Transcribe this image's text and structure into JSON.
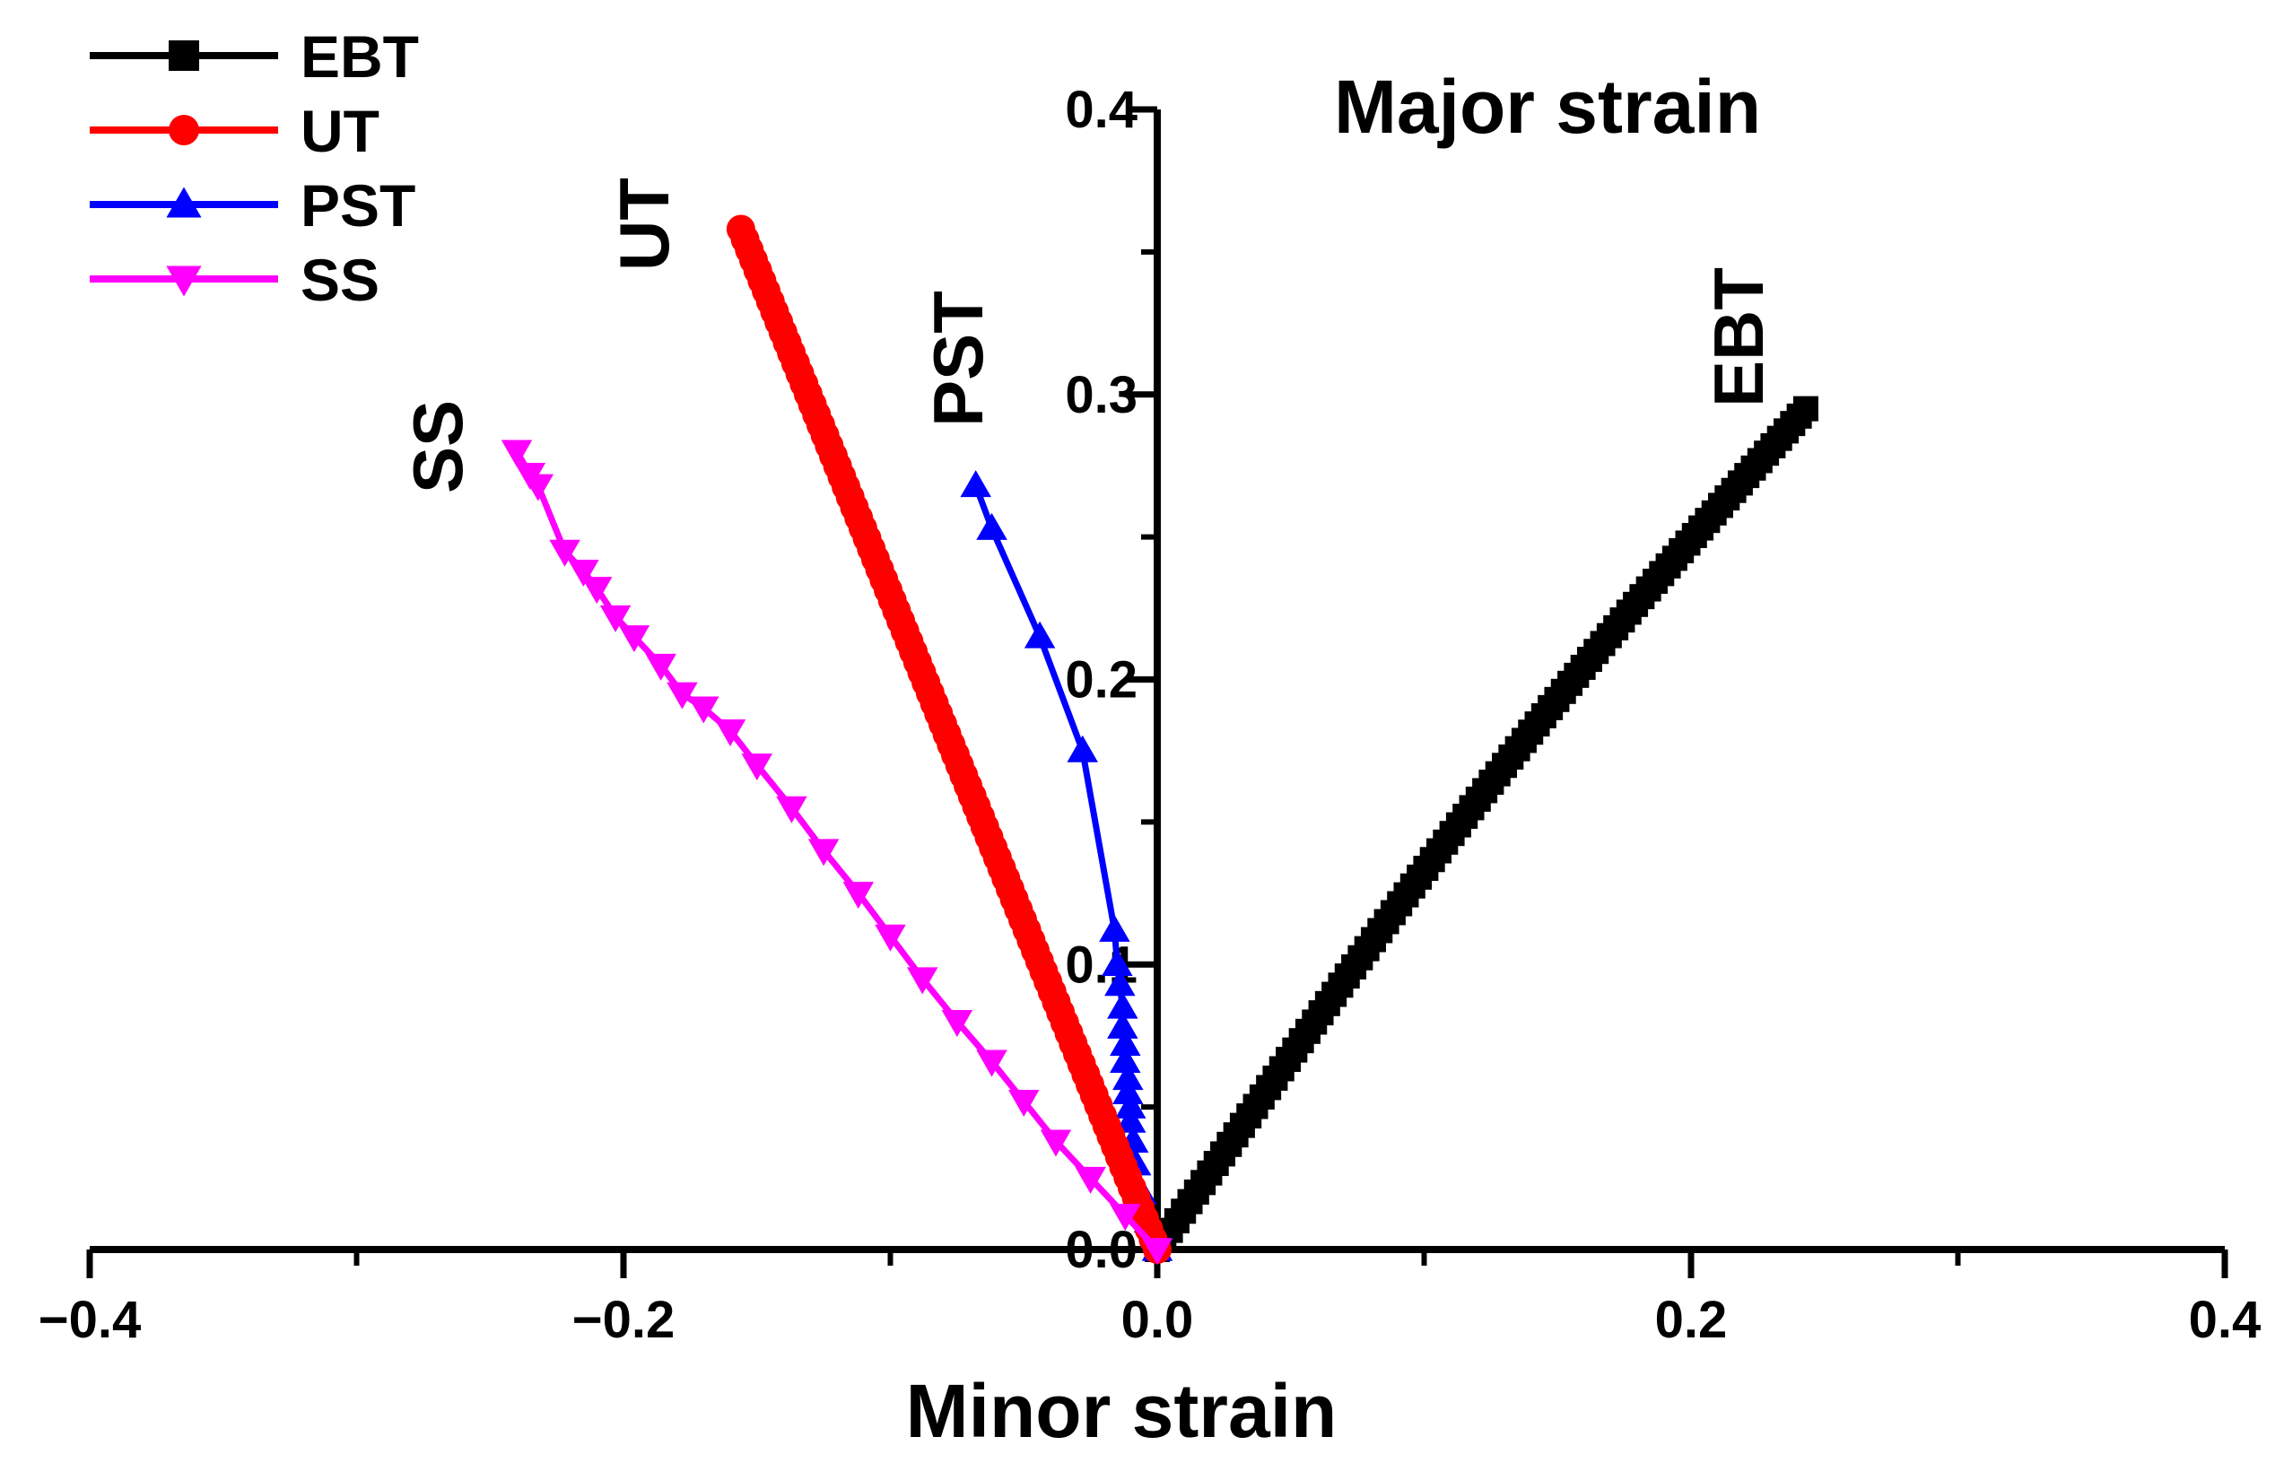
{
  "chart_data": {
    "type": "line",
    "title": "",
    "xlabel": "Minor strain",
    "ylabel": "Major strain",
    "xlim": [
      -0.4,
      0.4
    ],
    "ylim": [
      0.0,
      0.4
    ],
    "xticks": [
      -0.4,
      -0.2,
      0.0,
      0.2,
      0.4
    ],
    "xtick_labels": [
      "−0.4",
      "−0.2",
      "0.0",
      "0.2",
      "0.4"
    ],
    "yticks": [
      0.0,
      0.1,
      0.2,
      0.3,
      0.4
    ],
    "ytick_labels": [
      "0.0",
      "0.1",
      "0.2",
      "0.3",
      "0.4"
    ],
    "grid": false,
    "legend_position": "top-left",
    "series": [
      {
        "name": "EBT",
        "color": "#000000",
        "marker": "square",
        "label": "EBT",
        "start": [
          0.0,
          0.0
        ],
        "end": [
          0.243,
          0.295
        ],
        "curve": 0.012,
        "n_points": 100
      },
      {
        "name": "UT",
        "color": "#ff0000",
        "marker": "circle",
        "label": "UT",
        "start": [
          0.0,
          0.0
        ],
        "end": [
          -0.156,
          0.358
        ],
        "curve": 0.0,
        "n_points": 100
      },
      {
        "name": "PST",
        "color": "#0000ff",
        "marker": "triangle-up",
        "x": [
          0.0,
          -0.003,
          -0.006,
          -0.008,
          -0.009,
          -0.01,
          -0.01,
          -0.011,
          -0.011,
          -0.012,
          -0.012,
          -0.013,
          -0.013,
          -0.014,
          -0.015,
          -0.016,
          -0.028,
          -0.044,
          -0.062,
          -0.068
        ],
        "y": [
          0.0,
          0.01,
          0.02,
          0.03,
          0.038,
          0.045,
          0.05,
          0.055,
          0.06,
          0.066,
          0.072,
          0.078,
          0.085,
          0.093,
          0.1,
          0.112,
          0.175,
          0.215,
          0.253,
          0.268
        ],
        "label": "PST"
      },
      {
        "name": "SS",
        "color": "#ff00ff",
        "marker": "triangle-down",
        "label": "SS",
        "x": [
          0.0,
          -0.012,
          -0.025,
          -0.038,
          -0.05,
          -0.062,
          -0.075,
          -0.088,
          -0.1,
          -0.112,
          -0.125,
          -0.137,
          -0.15,
          -0.16,
          -0.17,
          -0.178,
          -0.186,
          -0.196,
          -0.203,
          -0.21,
          -0.215,
          -0.222,
          -0.232,
          -0.235,
          -0.24
        ],
        "y": [
          0.0,
          0.012,
          0.025,
          0.038,
          0.052,
          0.066,
          0.08,
          0.095,
          0.11,
          0.125,
          0.14,
          0.155,
          0.17,
          0.182,
          0.19,
          0.195,
          0.205,
          0.215,
          0.222,
          0.232,
          0.238,
          0.245,
          0.268,
          0.272,
          0.28
        ]
      }
    ]
  }
}
